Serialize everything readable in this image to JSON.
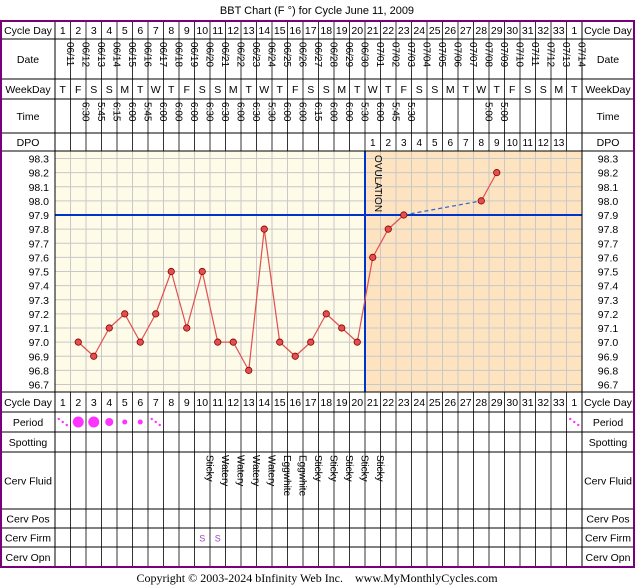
{
  "title": "BBT Chart (F °) for Cycle June 11, 2009",
  "footer": "Copyright © 2003-2024 bInfinity Web Inc.    www.MyMonthlyCycles.com",
  "colors": {
    "border": "#7a007a",
    "grid": "#c8c8c8",
    "chart_bg": "#fffbe9",
    "post_ovulation_bg": "#fde3c0",
    "temp_line": "#e05050",
    "coverline": "#0033cc",
    "period": "#ff33ff"
  },
  "labels": {
    "cycle_day": "Cycle Day",
    "date": "Date",
    "weekday": "WeekDay",
    "time": "Time",
    "dpo": "DPO",
    "period": "Period",
    "spotting": "Spotting",
    "cerv_fluid": "Cerv Fluid",
    "cerv_pos": "Cerv Pos",
    "cerv_firm": "Cerv Firm",
    "cerv_opn": "Cerv Opn",
    "ovulation": "OVULATION"
  },
  "cycle_days": [
    "1",
    "2",
    "3",
    "4",
    "5",
    "6",
    "7",
    "8",
    "9",
    "10",
    "11",
    "12",
    "13",
    "14",
    "15",
    "16",
    "17",
    "18",
    "19",
    "20",
    "21",
    "22",
    "23",
    "24",
    "25",
    "26",
    "27",
    "28",
    "29",
    "30",
    "31",
    "32",
    "33",
    "1"
  ],
  "dates": [
    "06/11",
    "06/12",
    "06/13",
    "06/14",
    "06/15",
    "06/16",
    "06/17",
    "06/18",
    "06/19",
    "06/20",
    "06/21",
    "06/22",
    "06/23",
    "06/24",
    "06/25",
    "06/26",
    "06/27",
    "06/28",
    "06/29",
    "06/30",
    "07/01",
    "07/02",
    "07/03",
    "07/04",
    "07/05",
    "07/06",
    "07/07",
    "07/08",
    "07/09",
    "07/10",
    "07/11",
    "07/12",
    "07/13",
    "07/14"
  ],
  "weekdays": [
    "T",
    "F",
    "S",
    "S",
    "M",
    "T",
    "W",
    "T",
    "F",
    "S",
    "S",
    "M",
    "T",
    "W",
    "T",
    "F",
    "S",
    "S",
    "M",
    "T",
    "W",
    "T",
    "F",
    "S",
    "S",
    "M",
    "T",
    "W",
    "T",
    "F",
    "S",
    "S",
    "M",
    "T"
  ],
  "times": [
    "",
    "6:30",
    "5:45",
    "6:15",
    "6:00",
    "5:45",
    "6:00",
    "6:00",
    "6:00",
    "6:30",
    "6:30",
    "6:00",
    "6:30",
    "5:30",
    "6:00",
    "6:00",
    "6:15",
    "6:00",
    "6:00",
    "5:30",
    "6:00",
    "5:45",
    "5:30",
    "",
    "",
    "",
    "",
    "5:00",
    "5:00",
    "",
    "",
    "",
    "",
    ""
  ],
  "dpo": [
    "",
    "",
    "",
    "",
    "",
    "",
    "",
    "",
    "",
    "",
    "",
    "",
    "",
    "",
    "",
    "",
    "",
    "",
    "",
    "",
    "1",
    "2",
    "3",
    "4",
    "5",
    "6",
    "7",
    "8",
    "9",
    "10",
    "11",
    "12",
    "13",
    ""
  ],
  "period": [
    "spot",
    "heavy",
    "heavy",
    "medium",
    "light",
    "light",
    "spot",
    "",
    "",
    "",
    "",
    "",
    "",
    "",
    "",
    "",
    "",
    "",
    "",
    "",
    "",
    "",
    "",
    "",
    "",
    "",
    "",
    "",
    "",
    "",
    "",
    "",
    "",
    "spot"
  ],
  "spotting": [
    "",
    "",
    "",
    "",
    "",
    "",
    "",
    "",
    "",
    "",
    "",
    "",
    "",
    "",
    "",
    "",
    "",
    "",
    "",
    "",
    "",
    "",
    "",
    "",
    "",
    "",
    "",
    "",
    "",
    "",
    "",
    "",
    "",
    ""
  ],
  "cerv_fluid": [
    "",
    "",
    "",
    "",
    "",
    "",
    "",
    "",
    "",
    "Sticky",
    "Watery",
    "Watery",
    "Watery",
    "Watery",
    "Eggwhite",
    "Eggwhite",
    "Sticky",
    "Sticky",
    "Sticky",
    "Sticky",
    "Sticky",
    "",
    "",
    "",
    "",
    "",
    "",
    "",
    "",
    "",
    "",
    "",
    "",
    ""
  ],
  "cerv_pos": [
    "",
    "",
    "",
    "",
    "",
    "",
    "",
    "",
    "",
    "",
    "",
    "",
    "",
    "",
    "",
    "",
    "",
    "",
    "",
    "",
    "",
    "",
    "",
    "",
    "",
    "",
    "",
    "",
    "",
    "",
    "",
    "",
    "",
    ""
  ],
  "cerv_firm": [
    "",
    "",
    "",
    "",
    "",
    "",
    "",
    "",
    "",
    "S",
    "S",
    "",
    "",
    "",
    "",
    "",
    "",
    "",
    "",
    "",
    "",
    "",
    "",
    "",
    "",
    "",
    "",
    "",
    "",
    "",
    "",
    "",
    "",
    ""
  ],
  "cerv_opn": [
    "",
    "",
    "",
    "",
    "",
    "",
    "",
    "",
    "",
    "",
    "",
    "",
    "",
    "",
    "",
    "",
    "",
    "",
    "",
    "",
    "",
    "",
    "",
    "",
    "",
    "",
    "",
    "",
    "",
    "",
    "",
    "",
    "",
    ""
  ],
  "chart_data": {
    "type": "line",
    "title": "BBT Chart (F °) for Cycle June 11, 2009",
    "ylim": [
      96.7,
      98.3
    ],
    "y_ticks": [
      "98.3",
      "98.2",
      "98.1",
      "98.0",
      "97.9",
      "97.8",
      "97.7",
      "97.6",
      "97.5",
      "97.4",
      "97.3",
      "97.2",
      "97.1",
      "97.0",
      "96.9",
      "96.8",
      "96.7"
    ],
    "x": [
      "1",
      "2",
      "3",
      "4",
      "5",
      "6",
      "7",
      "8",
      "9",
      "10",
      "11",
      "12",
      "13",
      "14",
      "15",
      "16",
      "17",
      "18",
      "19",
      "20",
      "21",
      "22",
      "23",
      "24",
      "25",
      "26",
      "27",
      "28",
      "29",
      "30",
      "31",
      "32",
      "33",
      "1"
    ],
    "temperatures": [
      null,
      97.0,
      96.9,
      97.1,
      97.2,
      97.0,
      97.2,
      97.5,
      97.1,
      97.5,
      97.0,
      97.0,
      96.8,
      97.8,
      97.0,
      96.9,
      97.0,
      97.2,
      97.1,
      97.0,
      97.6,
      97.8,
      97.9,
      null,
      null,
      null,
      null,
      98.0,
      98.2,
      null,
      null,
      null,
      null,
      null
    ],
    "coverline": 97.9,
    "ovulation_day": "20",
    "grid": true
  }
}
